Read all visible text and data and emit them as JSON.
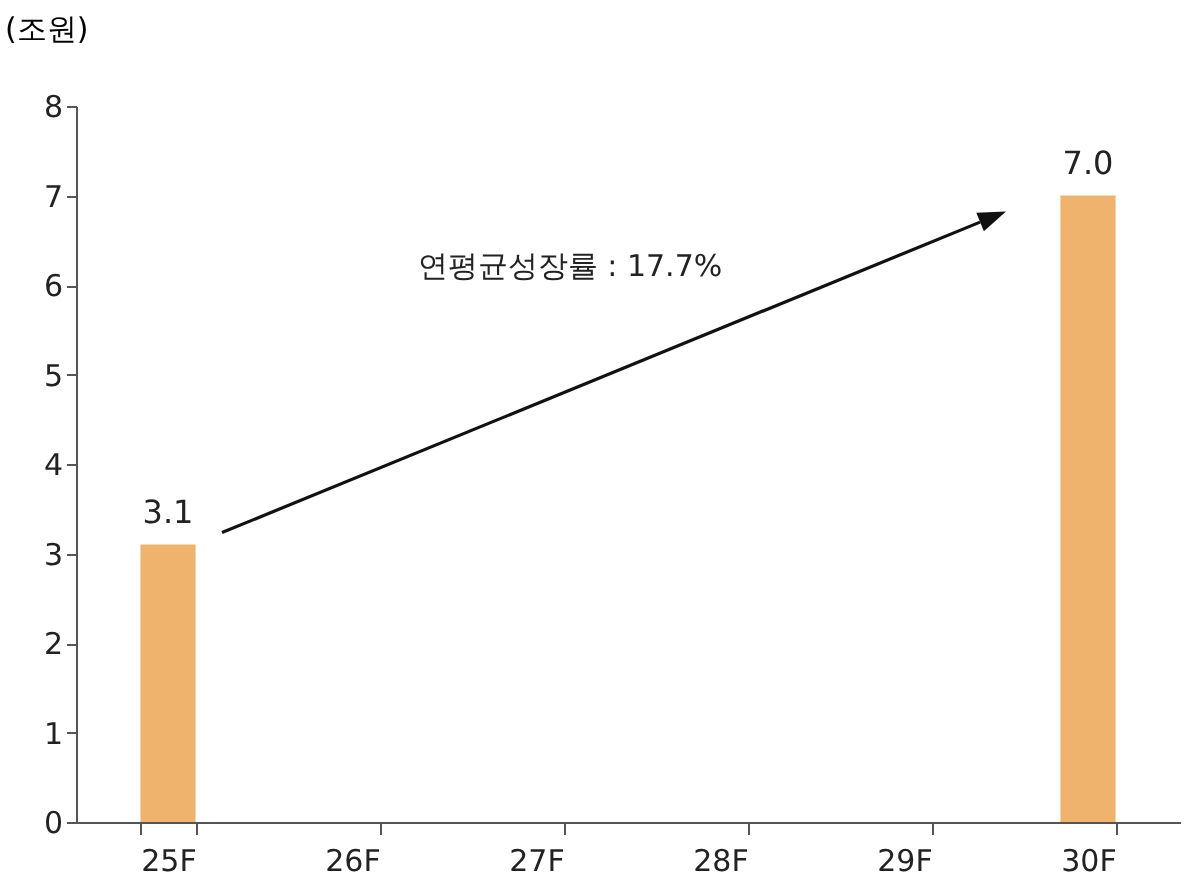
{
  "chart_data": {
    "type": "bar",
    "ylabel": "(조원)",
    "categories": [
      "25F",
      "26F",
      "27F",
      "28F",
      "29F",
      "30F"
    ],
    "values": [
      3.1,
      null,
      null,
      null,
      null,
      7.0
    ],
    "value_labels": [
      "3.1",
      null,
      null,
      null,
      null,
      "7.0"
    ],
    "color": "#f0b36d",
    "ylim": [
      0,
      8
    ],
    "yticks": [
      0,
      1,
      2,
      3,
      4,
      5,
      6,
      7,
      8
    ],
    "grid": false,
    "annotations": [
      "연평균성장률 : 17.7%"
    ]
  }
}
